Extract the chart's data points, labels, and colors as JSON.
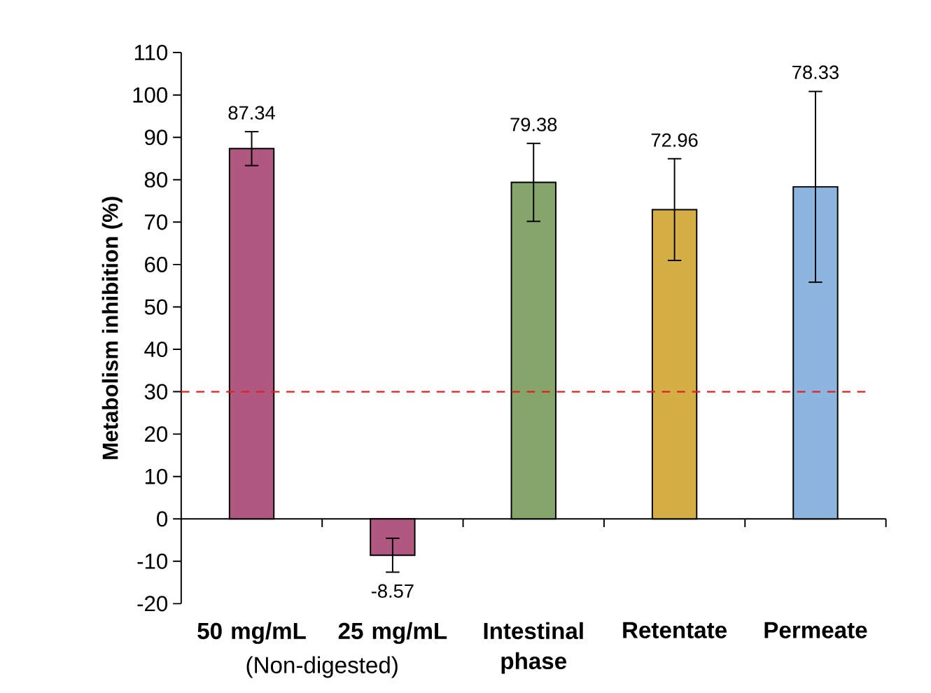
{
  "chart_data": {
    "type": "bar",
    "ylabel": "Metabolism inhibition (%)",
    "categories": [
      "50 mg/mL",
      "25 mg/mL",
      "Intestinal phase",
      "Retentate",
      "Permeate"
    ],
    "values": [
      87.34,
      -8.57,
      79.38,
      72.96,
      78.33
    ],
    "value_labels": [
      "87.34",
      "-8.57",
      "79.38",
      null,
      null
    ],
    "colors": [
      "#b05880",
      "#b05880",
      "#86a56b",
      "#d4af46",
      "#8db6df"
    ],
    "errors": [
      4,
      4,
      9.2,
      12,
      22.5
    ],
    "ylim": [
      -20,
      110
    ],
    "yticks": [
      -20,
      -10,
      0,
      10,
      20,
      30,
      40,
      50,
      60,
      70,
      80,
      90,
      100,
      110
    ],
    "ref_lines": [
      {
        "axis": "y",
        "value": 30,
        "color": "#e02020",
        "line_style": "dashed"
      }
    ],
    "annotations": [
      "(Non-digested)",
      {
        "text": "72.96",
        "x": "Retentate",
        "y": 85
      },
      {
        "text": "78.33",
        "x": "Permeate",
        "y": 101
      }
    ]
  }
}
